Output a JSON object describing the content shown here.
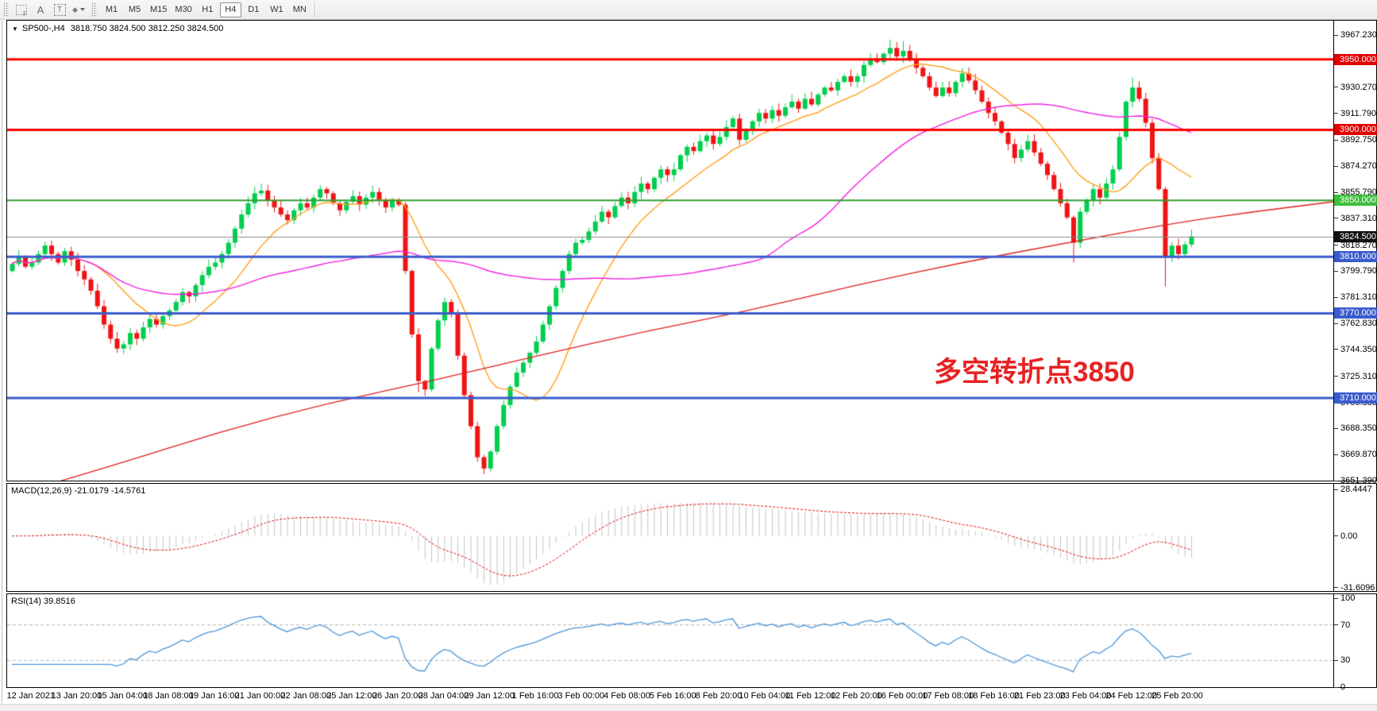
{
  "toolbar": {
    "icons": {
      "grid_f": "F",
      "text_a": "A",
      "text_t": "T",
      "styles": "◆"
    },
    "timeframes": [
      {
        "label": "M1",
        "active": false
      },
      {
        "label": "M5",
        "active": false
      },
      {
        "label": "M15",
        "active": false
      },
      {
        "label": "M30",
        "active": false
      },
      {
        "label": "H1",
        "active": false
      },
      {
        "label": "H4",
        "active": true
      },
      {
        "label": "D1",
        "active": false
      },
      {
        "label": "W1",
        "active": false
      },
      {
        "label": "MN",
        "active": false
      }
    ]
  },
  "main_chart": {
    "dropdown_glyph": "▼",
    "title": "SP500-,H4",
    "ohlc_text": "3818.750 3824.500 3812.250 3824.500",
    "annotation": "多空转折点3850",
    "price_ticks": [
      {
        "v": 3967.23,
        "label": "3967.230"
      },
      {
        "v": 3948.75,
        "label": "3948.750"
      },
      {
        "v": 3930.27,
        "label": "3930.270"
      },
      {
        "v": 3911.79,
        "label": "3911.790"
      },
      {
        "v": 3892.75,
        "label": "3892.750"
      },
      {
        "v": 3874.27,
        "label": "3874.270"
      },
      {
        "v": 3855.79,
        "label": "3855.790"
      },
      {
        "v": 3837.31,
        "label": "3837.310"
      },
      {
        "v": 3818.27,
        "label": "3818.270"
      },
      {
        "v": 3799.79,
        "label": "3799.790"
      },
      {
        "v": 3781.31,
        "label": "3781.310"
      },
      {
        "v": 3762.83,
        "label": "3762.830"
      },
      {
        "v": 3744.35,
        "label": "3744.350"
      },
      {
        "v": 3725.31,
        "label": "3725.310"
      },
      {
        "v": 3706.83,
        "label": "3706.830"
      },
      {
        "v": 3688.35,
        "label": "3688.350"
      },
      {
        "v": 3669.87,
        "label": "3669.870"
      },
      {
        "v": 3651.39,
        "label": "3651.390"
      }
    ],
    "price_boxes": [
      {
        "price": 3950,
        "label": "3950.000",
        "bg": "#e00000"
      },
      {
        "price": 3900,
        "label": "3900.000",
        "bg": "#e00000"
      },
      {
        "price": 3850,
        "label": "3850.000",
        "bg": "#3cbe3c"
      },
      {
        "price": 3824.5,
        "label": "3824.500",
        "bg": "#101010"
      },
      {
        "price": 3810,
        "label": "3810.000",
        "bg": "#3b5ccc"
      },
      {
        "price": 3770,
        "label": "3770.000",
        "bg": "#3b5ccc"
      },
      {
        "price": 3710,
        "label": "3710.000",
        "bg": "#3b5ccc"
      }
    ]
  },
  "macd_panel": {
    "label": "MACD(12,26,9)",
    "values": "-21.0179 -14.5761",
    "ticks": [
      {
        "v": 28.4447,
        "label": "28.4447"
      },
      {
        "v": 0,
        "label": "0.00"
      },
      {
        "v": -31.6096,
        "label": "-31.6096"
      }
    ]
  },
  "rsi_panel": {
    "label": "RSI(14)",
    "values": "39.8516",
    "ticks": [
      {
        "v": 100,
        "label": "100"
      },
      {
        "v": 70,
        "label": "70"
      },
      {
        "v": 30,
        "label": "30"
      },
      {
        "v": 0,
        "label": "0"
      }
    ],
    "levels": [
      70,
      30
    ]
  },
  "time_axis": {
    "labels": [
      "12 Jan 2021",
      "13 Jan 20:00",
      "15 Jan 04:00",
      "18 Jan 08:00",
      "19 Jan 16:00",
      "21 Jan 00:00",
      "22 Jan 08:00",
      "25 Jan 12:00",
      "26 Jan 20:00",
      "28 Jan 04:00",
      "29 Jan 12:00",
      "1 Feb 16:00",
      "3 Feb 00:00",
      "4 Feb 08:00",
      "5 Feb 16:00",
      "8 Feb 20:00",
      "10 Feb 04:00",
      "11 Feb 12:00",
      "12 Feb 20:00",
      "16 Feb 00:00",
      "17 Feb 08:00",
      "18 Feb 16:00",
      "21 Feb 23:00",
      "23 Feb 04:00",
      "24 Feb 12:00",
      "25 Feb 20:00"
    ]
  },
  "chart_data": {
    "type": "candlestick",
    "symbol": "SP500-",
    "timeframe": "H4",
    "last_ohlc": {
      "open": 3818.75,
      "high": 3824.5,
      "low": 3812.25,
      "close": 3824.5
    },
    "first_open": 3800,
    "closes": [
      3805,
      3810,
      3803,
      3806,
      3812,
      3818,
      3812,
      3806,
      3814,
      3808,
      3800,
      3794,
      3786,
      3775,
      3762,
      3752,
      3745,
      3748,
      3756,
      3752,
      3760,
      3766,
      3762,
      3768,
      3772,
      3778,
      3785,
      3782,
      3790,
      3797,
      3803,
      3806,
      3812,
      3820,
      3830,
      3840,
      3848,
      3855,
      3857,
      3850,
      3845,
      3840,
      3836,
      3843,
      3848,
      3845,
      3852,
      3858,
      3855,
      3848,
      3843,
      3849,
      3853,
      3847,
      3852,
      3856,
      3850,
      3845,
      3850,
      3847,
      3800,
      3755,
      3722,
      3716,
      3745,
      3765,
      3778,
      3770,
      3740,
      3712,
      3690,
      3668,
      3660,
      3672,
      3690,
      3705,
      3718,
      3728,
      3735,
      3742,
      3750,
      3762,
      3775,
      3788,
      3800,
      3812,
      3820,
      3822,
      3828,
      3835,
      3842,
      3838,
      3846,
      3852,
      3848,
      3856,
      3862,
      3858,
      3866,
      3872,
      3868,
      3872,
      3882,
      3888,
      3885,
      3892,
      3896,
      3890,
      3895,
      3902,
      3908,
      3893,
      3900,
      3906,
      3912,
      3908,
      3914,
      3910,
      3916,
      3920,
      3915,
      3922,
      3918,
      3925,
      3930,
      3928,
      3934,
      3938,
      3934,
      3938,
      3946,
      3950,
      3948,
      3954,
      3958,
      3952,
      3956,
      3950,
      3944,
      3938,
      3930,
      3924,
      3930,
      3926,
      3934,
      3940,
      3935,
      3928,
      3920,
      3912,
      3906,
      3898,
      3890,
      3880,
      3886,
      3892,
      3884,
      3876,
      3868,
      3858,
      3848,
      3838,
      3820,
      3842,
      3850,
      3858,
      3852,
      3862,
      3872,
      3895,
      3920,
      3930,
      3922,
      3905,
      3880,
      3858,
      3810,
      3818,
      3812,
      3818.75,
      3824.5
    ],
    "wick_lows": {
      "16": 3742,
      "62": 3714,
      "72": 3656,
      "162": 3806,
      "176": 3789
    },
    "wick_highs": {
      "38": 3862,
      "47": 3861,
      "134": 3964,
      "136": 3963,
      "171": 3937
    },
    "ma_fast_period": 13,
    "ma_mid_period": 55,
    "ma_slow_anchors": [
      [
        0.0,
        3640
      ],
      [
        0.08,
        3662
      ],
      [
        0.16,
        3686
      ],
      [
        0.24,
        3706
      ],
      [
        0.32,
        3722
      ],
      [
        0.4,
        3740
      ],
      [
        0.48,
        3757
      ],
      [
        0.56,
        3772
      ],
      [
        0.64,
        3790
      ],
      [
        0.72,
        3806
      ],
      [
        0.8,
        3820
      ],
      [
        0.88,
        3834
      ],
      [
        0.94,
        3842
      ],
      [
        1.0,
        3849
      ]
    ],
    "hlines": [
      {
        "price": 3950,
        "color": "#ff0000",
        "width": 3
      },
      {
        "price": 3900,
        "color": "#ff0000",
        "width": 3
      },
      {
        "price": 3850,
        "color": "#2f9e2f",
        "width": 2
      },
      {
        "price": 3810,
        "color": "#3b5ccc",
        "width": 3
      },
      {
        "price": 3770,
        "color": "#3b5ccc",
        "width": 3
      },
      {
        "price": 3710,
        "color": "#3b5ccc",
        "width": 3
      }
    ],
    "bid_price": 3824.5,
    "colors": {
      "up": "#00ce4e",
      "down": "#f01414",
      "ma_fast": "#ff9f1a",
      "ma_mid": "#f020e0",
      "ma_slow": "#e02020",
      "macd_hist": "#c4c4c4",
      "macd_signal": "#e01010",
      "rsi": "#4d96d6",
      "bid_line": "#8a8a8a",
      "level_dash": "#b4b4b4"
    }
  }
}
